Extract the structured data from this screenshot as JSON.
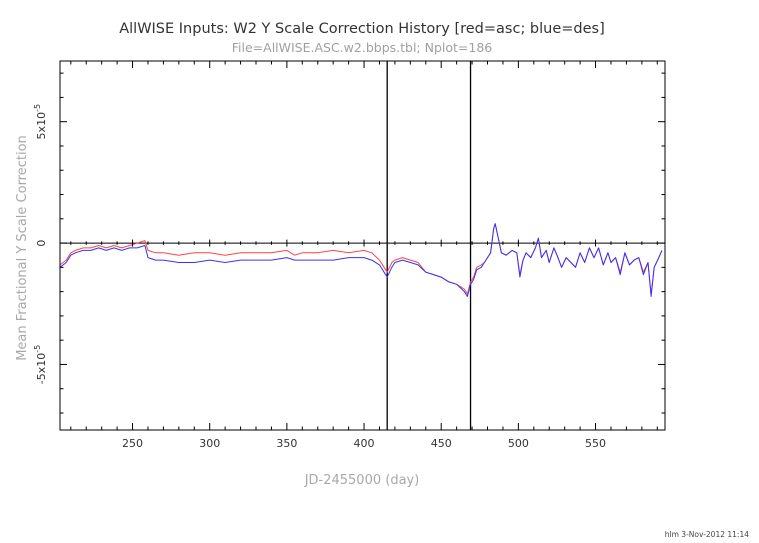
{
  "chart_data": {
    "type": "line",
    "title": "AllWISE Inputs: W2 Y Scale Correction History [red=asc; blue=des]",
    "subtitle": "File=AllWISE.ASC.w2.bbps.tbl; Nplot=186",
    "xlabel": "JD-2455000 (day)",
    "ylabel": "Mean Fractional Y Scale Correction",
    "xlim": [
      203,
      595
    ],
    "ylim": [
      -7.7e-05,
      7.5e-05
    ],
    "x_ticks": [
      250,
      300,
      350,
      400,
      450,
      500,
      550
    ],
    "x_tick_labels": [
      "250",
      "300",
      "350",
      "400",
      "450",
      "500",
      "550"
    ],
    "y_ticks": [
      5e-05,
      0,
      -5e-05
    ],
    "y_tick_labels": [
      {
        "base": "5x10",
        "exp": "-5"
      },
      {
        "base": "0",
        "exp": ""
      },
      {
        "base": "-5x10",
        "exp": "-5"
      }
    ],
    "vlines": [
      415,
      469
    ],
    "zero_line": true,
    "colors": {
      "asc": "#ff4444",
      "des": "#3333ff",
      "frame": "#000000"
    },
    "series": [
      {
        "color": "#ff4444",
        "x": [
          203,
          207,
          210,
          213,
          218,
          223,
          228,
          233,
          238,
          243,
          248,
          253,
          258,
          260,
          265,
          270,
          280,
          290,
          300,
          310,
          320,
          330,
          340,
          350,
          355,
          360,
          370,
          380,
          390,
          400,
          405,
          410,
          413,
          415,
          418,
          420,
          425,
          430,
          435,
          440,
          445,
          450,
          455,
          460,
          465,
          467,
          469,
          471,
          473,
          476,
          478,
          480,
          482,
          484,
          485,
          487,
          489,
          492,
          496,
          499,
          501,
          503,
          505,
          508,
          511,
          513,
          515,
          518,
          520,
          523,
          525,
          528,
          531,
          534,
          537,
          540,
          543,
          546,
          549,
          552,
          555,
          558,
          560,
          563,
          566,
          569,
          572,
          575,
          578,
          581,
          584,
          586,
          588,
          591,
          593
        ],
        "y": [
          -9e-06,
          -7e-06,
          -4e-06,
          -3e-06,
          -2e-06,
          -2e-06,
          -1e-06,
          -2e-06,
          -1e-06,
          -2e-06,
          -1e-06,
          0,
          1e-06,
          -3e-06,
          -4e-06,
          -4e-06,
          -5e-06,
          -4e-06,
          -4e-06,
          -5e-06,
          -4e-06,
          -4e-06,
          -4e-06,
          -3e-06,
          -5e-06,
          -4e-06,
          -4e-06,
          -3e-06,
          -4e-06,
          -3e-06,
          -4e-06,
          -7e-06,
          -1e-05,
          -1.2e-05,
          -8e-06,
          -7e-06,
          -6e-06,
          -7e-06,
          -8e-06,
          -1.2e-05,
          -1.3e-05,
          -1.4e-05,
          -1.6e-05,
          -1.7e-05,
          -1.9e-05,
          -2.1e-05,
          -1.6e-05,
          -1.4e-05,
          -1e-05,
          -9e-06,
          -8e-06,
          -6e-06,
          -4e-06,
          6e-06,
          8e-06,
          2e-06,
          -4e-06,
          -5e-06,
          -3e-06,
          -4e-06,
          -1.3e-05,
          -7e-06,
          -4e-06,
          -6e-06,
          -2e-06,
          2e-06,
          -6e-06,
          -3e-06,
          -8e-06,
          -2e-06,
          -5e-06,
          -1e-05,
          -6e-06,
          -8e-06,
          -1e-05,
          -4e-06,
          -8e-06,
          -2e-06,
          -6e-06,
          -2e-06,
          -9e-06,
          -4e-06,
          -8e-06,
          -6e-06,
          -1.2e-05,
          -4e-06,
          -9e-06,
          -7e-06,
          -6e-06,
          -1.2e-05,
          -8e-06,
          -2.1e-05,
          -1e-05,
          -6e-06,
          -3e-06
        ]
      },
      {
        "color": "#3333ff",
        "x": [
          203,
          207,
          210,
          213,
          218,
          223,
          228,
          233,
          238,
          243,
          248,
          253,
          258,
          260,
          265,
          270,
          280,
          290,
          300,
          310,
          320,
          330,
          340,
          350,
          355,
          360,
          370,
          380,
          390,
          400,
          405,
          410,
          413,
          415,
          418,
          420,
          425,
          430,
          435,
          440,
          445,
          450,
          455,
          460,
          465,
          467,
          469,
          471,
          473,
          476,
          478,
          480,
          482,
          484,
          485,
          487,
          489,
          492,
          496,
          499,
          501,
          503,
          505,
          508,
          511,
          513,
          515,
          518,
          520,
          523,
          525,
          528,
          531,
          534,
          537,
          540,
          543,
          546,
          549,
          552,
          555,
          558,
          560,
          563,
          566,
          569,
          572,
          575,
          578,
          581,
          584,
          586,
          588,
          591,
          593
        ],
        "y": [
          -1e-05,
          -8e-06,
          -5e-06,
          -4e-06,
          -3e-06,
          -3e-06,
          -2e-06,
          -3e-06,
          -2e-06,
          -3e-06,
          -2e-06,
          -2e-06,
          -1e-06,
          -6e-06,
          -7e-06,
          -7e-06,
          -8e-06,
          -8e-06,
          -7e-06,
          -8e-06,
          -7e-06,
          -7e-06,
          -7e-06,
          -6e-06,
          -7e-06,
          -7e-06,
          -7e-06,
          -7e-06,
          -6e-06,
          -6e-06,
          -7e-06,
          -9e-06,
          -1.2e-05,
          -1.4e-05,
          -1e-05,
          -8e-06,
          -7e-06,
          -8e-06,
          -9e-06,
          -1.2e-05,
          -1.3e-05,
          -1.4e-05,
          -1.6e-05,
          -1.7e-05,
          -2e-05,
          -2.2e-05,
          -1.7e-05,
          -1.5e-05,
          -1.1e-05,
          -1e-05,
          -8e-06,
          -6e-06,
          -4e-06,
          6e-06,
          8e-06,
          2e-06,
          -4e-06,
          -5e-06,
          -3e-06,
          -4e-06,
          -1.4e-05,
          -7e-06,
          -4e-06,
          -6e-06,
          -2e-06,
          2e-06,
          -6e-06,
          -3e-06,
          -8e-06,
          -2e-06,
          -5e-06,
          -1e-05,
          -6e-06,
          -8e-06,
          -1e-05,
          -4e-06,
          -8e-06,
          -2e-06,
          -6e-06,
          -2e-06,
          -9e-06,
          -4e-06,
          -8e-06,
          -6e-06,
          -1.3e-05,
          -4e-06,
          -9e-06,
          -7e-06,
          -6e-06,
          -1.3e-05,
          -8e-06,
          -2.2e-05,
          -1e-05,
          -6e-06,
          -3e-06
        ]
      }
    ]
  },
  "footer": {
    "stamp": "hlm   3-Nov-2012 11:14"
  }
}
